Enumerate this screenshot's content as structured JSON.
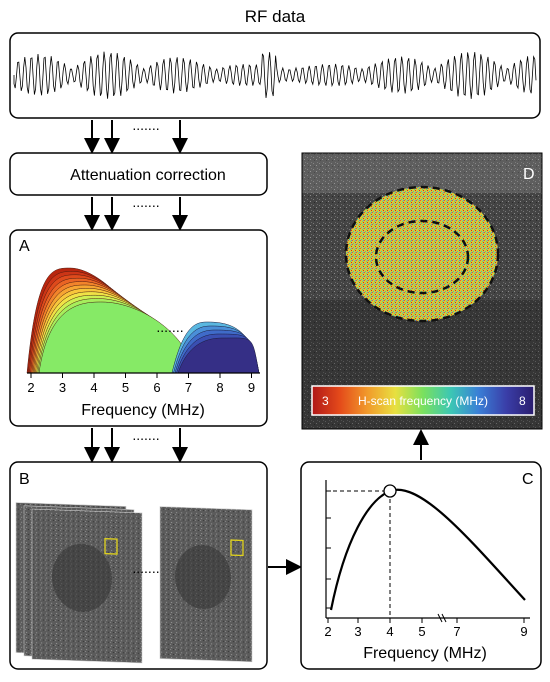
{
  "header": {
    "title": "RF data"
  },
  "flow": {
    "dots": "......."
  },
  "attenuation": {
    "label": "Attenuation correction"
  },
  "panel_a": {
    "letter": "A",
    "xlabel": "Frequency (MHz)",
    "ticks": [
      "2",
      "3",
      "4",
      "5",
      "6",
      "7",
      "8",
      "9"
    ],
    "warm_colors": [
      "#b8260f",
      "#cc3516",
      "#de4a1c",
      "#ea6424",
      "#f2842b",
      "#f6a532",
      "#f7c63b",
      "#f0e246",
      "#cdef52",
      "#a6ee5c",
      "#86ea66"
    ],
    "cool_colors": [
      "#5ab7e0",
      "#4a8fd8",
      "#3f6bc9",
      "#3a4fb2",
      "#352f86"
    ]
  },
  "panel_b": {
    "letter": "B",
    "roi_color": "#e0d21c"
  },
  "panel_c": {
    "letter": "C",
    "xlabel": "Frequency (MHz)",
    "ticks": [
      "2",
      "3",
      "4",
      "5",
      "7",
      "9"
    ],
    "peak_label_value": "4"
  },
  "panel_d": {
    "letter": "D",
    "colorbar": {
      "min_label": "3",
      "label": "H-scan frequency (MHz)",
      "max_label": "8",
      "colors": [
        "#b01818",
        "#e44a1a",
        "#f19a2b",
        "#e8e040",
        "#7ae05e",
        "#3cc7b4",
        "#3a7fd6",
        "#3a3ea8",
        "#2a1d6e"
      ]
    }
  }
}
